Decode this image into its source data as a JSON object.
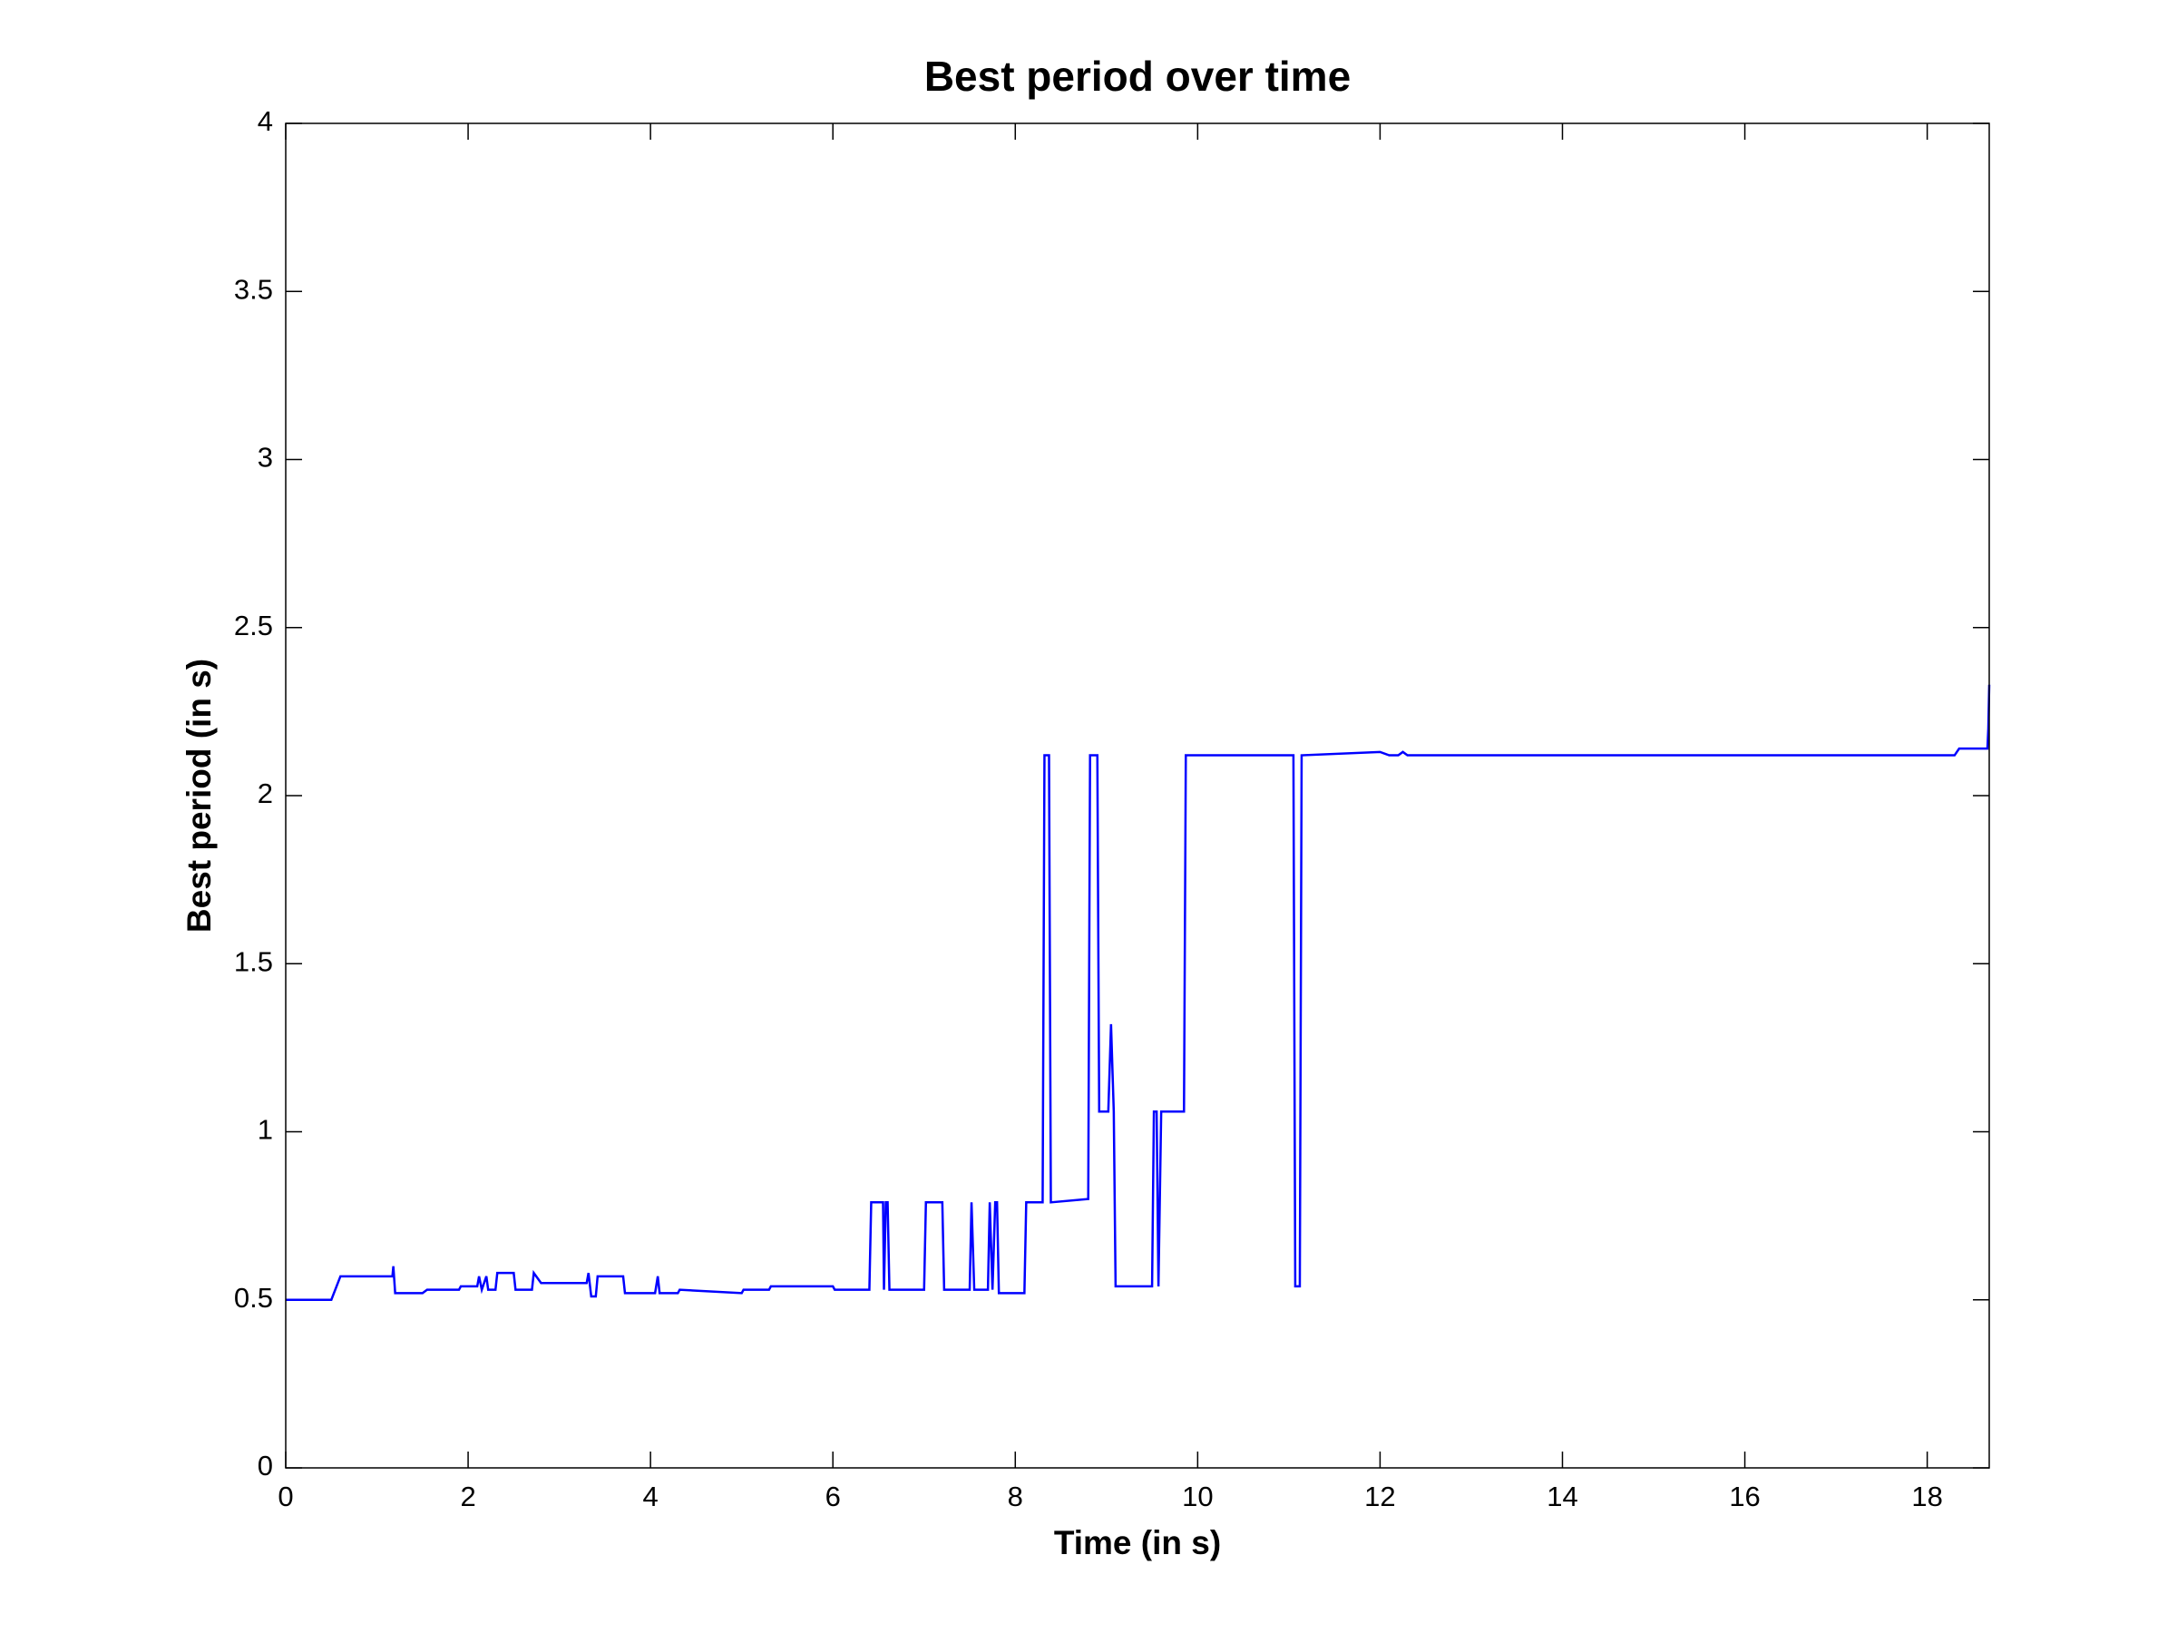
{
  "chart_data": {
    "type": "line",
    "title": "Best period over time",
    "x_label": "Time (in s)",
    "y_label": "Best period (in s)",
    "color": "#0000ff",
    "x": [
      0,
      0.5,
      0.6,
      1.17,
      1.18,
      1.2,
      1.5,
      1.55,
      1.9,
      1.92,
      2.1,
      2.12,
      2.15,
      2.2,
      2.22,
      2.3,
      2.32,
      2.35,
      2.5,
      2.52,
      2.7,
      2.72,
      2.8,
      3.3,
      3.32,
      3.35,
      3.4,
      3.42,
      3.7,
      3.72,
      4.05,
      4.08,
      4.1,
      4.3,
      4.32,
      5.0,
      5.02,
      5.3,
      5.32,
      6.0,
      6.02,
      6.4,
      6.42,
      6.55,
      6.56,
      6.58,
      6.6,
      6.62,
      7.0,
      7.02,
      7.2,
      7.22,
      7.5,
      7.52,
      7.55,
      7.7,
      7.72,
      7.75,
      7.78,
      7.8,
      7.82,
      8.1,
      8.12,
      8.3,
      8.32,
      8.37,
      8.39,
      8.8,
      8.82,
      8.9,
      8.92,
      9.02,
      9.05,
      9.08,
      9.1,
      9.5,
      9.52,
      9.55,
      9.57,
      9.6,
      9.85,
      9.87,
      11.05,
      11.07,
      11.12,
      11.14,
      12.0,
      12.1,
      12.2,
      12.25,
      12.3,
      18.3,
      18.35,
      18.66,
      18.67,
      18.68
    ],
    "values": [
      0.5,
      0.5,
      0.57,
      0.57,
      0.6,
      0.52,
      0.52,
      0.53,
      0.53,
      0.54,
      0.54,
      0.57,
      0.53,
      0.57,
      0.53,
      0.53,
      0.58,
      0.58,
      0.58,
      0.53,
      0.53,
      0.58,
      0.55,
      0.55,
      0.58,
      0.51,
      0.51,
      0.57,
      0.57,
      0.52,
      0.52,
      0.57,
      0.52,
      0.52,
      0.53,
      0.52,
      0.53,
      0.53,
      0.54,
      0.54,
      0.53,
      0.53,
      0.79,
      0.79,
      0.53,
      0.79,
      0.79,
      0.53,
      0.53,
      0.79,
      0.79,
      0.53,
      0.53,
      0.79,
      0.53,
      0.53,
      0.79,
      0.53,
      0.79,
      0.79,
      0.52,
      0.52,
      0.79,
      0.79,
      2.12,
      2.12,
      0.79,
      0.8,
      2.12,
      2.12,
      1.06,
      1.06,
      1.32,
      1.06,
      0.54,
      0.54,
      1.06,
      1.06,
      0.54,
      1.06,
      1.06,
      2.12,
      2.12,
      0.54,
      0.54,
      2.12,
      2.13,
      2.12,
      2.12,
      2.13,
      2.12,
      2.12,
      2.14,
      2.14,
      2.2,
      2.33
    ],
    "xlim": [
      0,
      18.68
    ],
    "xticks": [
      0,
      2,
      4,
      6,
      8,
      10,
      12,
      14,
      16,
      18
    ],
    "ylim": [
      0,
      4
    ],
    "yticks": [
      0,
      0.5,
      1,
      1.5,
      2,
      2.5,
      3,
      3.5,
      4
    ],
    "grid": false
  }
}
